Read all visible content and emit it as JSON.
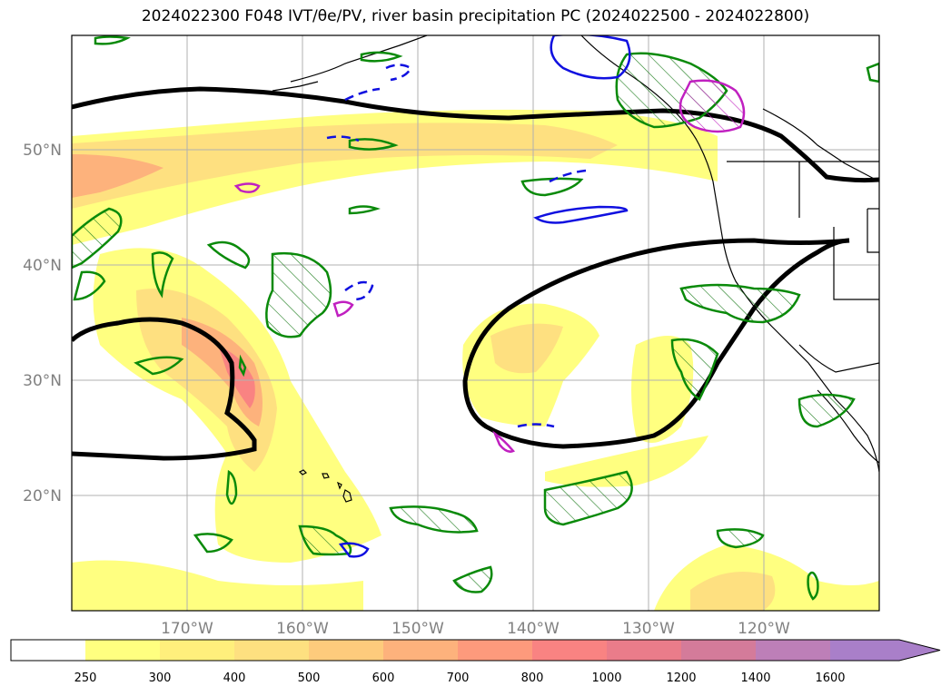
{
  "title": "2024022300 F048 IVT/θe/PV, river basin precipitation PC (2024022500 - 2024022800)",
  "map": {
    "lat_labels": [
      "50°N",
      "40°N",
      "30°N",
      "20°N"
    ],
    "lon_labels": [
      "170°W",
      "160°W",
      "150°W",
      "140°W",
      "130°W",
      "120°W"
    ]
  },
  "colorbar": {
    "ticks": [
      "250",
      "300",
      "400",
      "500",
      "600",
      "700",
      "800",
      "1000",
      "1200",
      "1400",
      "1600"
    ],
    "colors": [
      "#ffff80",
      "#ffef7c",
      "#fee080",
      "#fecb7c",
      "#fdb27c",
      "#fd9a7c",
      "#f98382",
      "#ea7c8a",
      "#d47b9a",
      "#bd7fb8",
      "#a97fc9"
    ]
  }
}
